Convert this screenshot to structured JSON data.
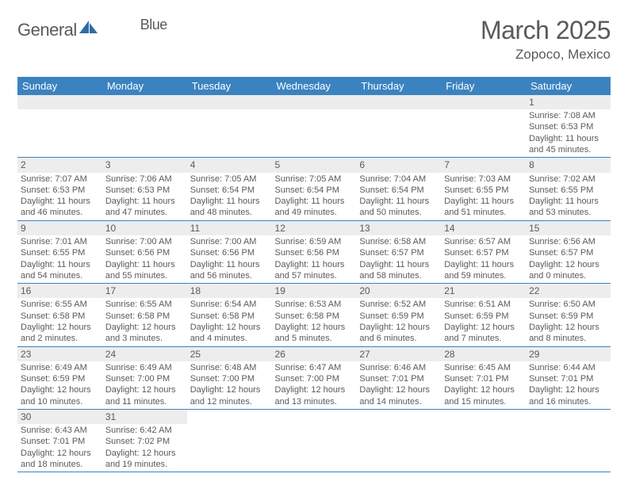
{
  "logo": {
    "main": "General",
    "sub": "Blue"
  },
  "title": "March 2025",
  "location": "Zopoco, Mexico",
  "styling": {
    "header_bg": "#3b83c0",
    "header_fg": "#ffffff",
    "daynum_bg": "#ededed",
    "border_color": "#3b83c0",
    "text_color": "#5a5a5a",
    "logo_accent": "#2e6ca4",
    "page_bg": "#ffffff",
    "month_fontsize": 32,
    "location_fontsize": 17,
    "dayhead_fontsize": 13,
    "body_fontsize": 11
  },
  "day_headers": [
    "Sunday",
    "Monday",
    "Tuesday",
    "Wednesday",
    "Thursday",
    "Friday",
    "Saturday"
  ],
  "weeks": [
    [
      null,
      null,
      null,
      null,
      null,
      null,
      {
        "n": "1",
        "sr": "7:08 AM",
        "ss": "6:53 PM",
        "dl": "11 hours and 45 minutes."
      }
    ],
    [
      {
        "n": "2",
        "sr": "7:07 AM",
        "ss": "6:53 PM",
        "dl": "11 hours and 46 minutes."
      },
      {
        "n": "3",
        "sr": "7:06 AM",
        "ss": "6:53 PM",
        "dl": "11 hours and 47 minutes."
      },
      {
        "n": "4",
        "sr": "7:05 AM",
        "ss": "6:54 PM",
        "dl": "11 hours and 48 minutes."
      },
      {
        "n": "5",
        "sr": "7:05 AM",
        "ss": "6:54 PM",
        "dl": "11 hours and 49 minutes."
      },
      {
        "n": "6",
        "sr": "7:04 AM",
        "ss": "6:54 PM",
        "dl": "11 hours and 50 minutes."
      },
      {
        "n": "7",
        "sr": "7:03 AM",
        "ss": "6:55 PM",
        "dl": "11 hours and 51 minutes."
      },
      {
        "n": "8",
        "sr": "7:02 AM",
        "ss": "6:55 PM",
        "dl": "11 hours and 53 minutes."
      }
    ],
    [
      {
        "n": "9",
        "sr": "7:01 AM",
        "ss": "6:55 PM",
        "dl": "11 hours and 54 minutes."
      },
      {
        "n": "10",
        "sr": "7:00 AM",
        "ss": "6:56 PM",
        "dl": "11 hours and 55 minutes."
      },
      {
        "n": "11",
        "sr": "7:00 AM",
        "ss": "6:56 PM",
        "dl": "11 hours and 56 minutes."
      },
      {
        "n": "12",
        "sr": "6:59 AM",
        "ss": "6:56 PM",
        "dl": "11 hours and 57 minutes."
      },
      {
        "n": "13",
        "sr": "6:58 AM",
        "ss": "6:57 PM",
        "dl": "11 hours and 58 minutes."
      },
      {
        "n": "14",
        "sr": "6:57 AM",
        "ss": "6:57 PM",
        "dl": "11 hours and 59 minutes."
      },
      {
        "n": "15",
        "sr": "6:56 AM",
        "ss": "6:57 PM",
        "dl": "12 hours and 0 minutes."
      }
    ],
    [
      {
        "n": "16",
        "sr": "6:55 AM",
        "ss": "6:58 PM",
        "dl": "12 hours and 2 minutes."
      },
      {
        "n": "17",
        "sr": "6:55 AM",
        "ss": "6:58 PM",
        "dl": "12 hours and 3 minutes."
      },
      {
        "n": "18",
        "sr": "6:54 AM",
        "ss": "6:58 PM",
        "dl": "12 hours and 4 minutes."
      },
      {
        "n": "19",
        "sr": "6:53 AM",
        "ss": "6:58 PM",
        "dl": "12 hours and 5 minutes."
      },
      {
        "n": "20",
        "sr": "6:52 AM",
        "ss": "6:59 PM",
        "dl": "12 hours and 6 minutes."
      },
      {
        "n": "21",
        "sr": "6:51 AM",
        "ss": "6:59 PM",
        "dl": "12 hours and 7 minutes."
      },
      {
        "n": "22",
        "sr": "6:50 AM",
        "ss": "6:59 PM",
        "dl": "12 hours and 8 minutes."
      }
    ],
    [
      {
        "n": "23",
        "sr": "6:49 AM",
        "ss": "6:59 PM",
        "dl": "12 hours and 10 minutes."
      },
      {
        "n": "24",
        "sr": "6:49 AM",
        "ss": "7:00 PM",
        "dl": "12 hours and 11 minutes."
      },
      {
        "n": "25",
        "sr": "6:48 AM",
        "ss": "7:00 PM",
        "dl": "12 hours and 12 minutes."
      },
      {
        "n": "26",
        "sr": "6:47 AM",
        "ss": "7:00 PM",
        "dl": "12 hours and 13 minutes."
      },
      {
        "n": "27",
        "sr": "6:46 AM",
        "ss": "7:01 PM",
        "dl": "12 hours and 14 minutes."
      },
      {
        "n": "28",
        "sr": "6:45 AM",
        "ss": "7:01 PM",
        "dl": "12 hours and 15 minutes."
      },
      {
        "n": "29",
        "sr": "6:44 AM",
        "ss": "7:01 PM",
        "dl": "12 hours and 16 minutes."
      }
    ],
    [
      {
        "n": "30",
        "sr": "6:43 AM",
        "ss": "7:01 PM",
        "dl": "12 hours and 18 minutes."
      },
      {
        "n": "31",
        "sr": "6:42 AM",
        "ss": "7:02 PM",
        "dl": "12 hours and 19 minutes."
      },
      null,
      null,
      null,
      null,
      null
    ]
  ],
  "labels": {
    "sunrise": "Sunrise:",
    "sunset": "Sunset:",
    "daylight": "Daylight:"
  }
}
